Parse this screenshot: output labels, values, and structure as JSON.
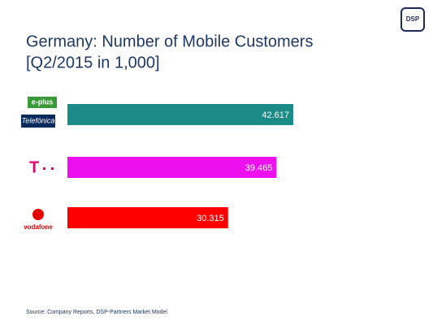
{
  "logo": "DSP",
  "chart_data": {
    "type": "bar",
    "orientation": "horizontal",
    "title": "Germany: Number of Mobile Customers",
    "subtitle": "[Q2/2015 in 1,000]",
    "categories": [
      [
        "e-plus",
        "Telefónica"
      ],
      [
        "T"
      ],
      [
        "vodafone"
      ]
    ],
    "values": [
      42617,
      39465,
      30315
    ],
    "value_labels": [
      "42.617",
      "39.465",
      "30.315"
    ],
    "colors": [
      "#1a8b86",
      "#ee10ee",
      "#fe0000"
    ],
    "source": "Source: Company Reports, DSP-Partners Market Model"
  }
}
